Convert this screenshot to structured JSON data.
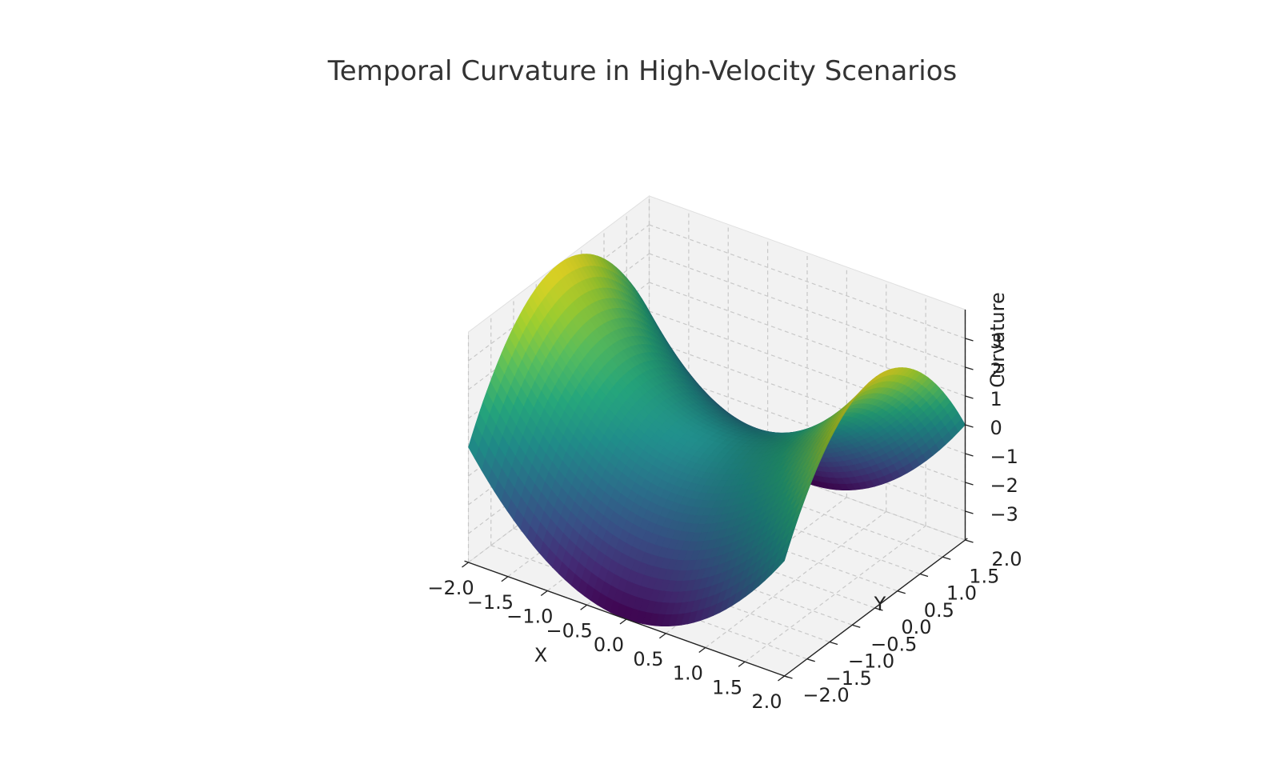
{
  "chart_data": {
    "type": "surface3d",
    "title": "Temporal Curvature in High-Velocity Scenarios",
    "xlabel": "X",
    "ylabel": "Y",
    "zlabel": "Curvature",
    "function": "z = x^2 - y^2",
    "xlim": [
      -2,
      2
    ],
    "ylim": [
      -2,
      2
    ],
    "zlim": [
      -4,
      4
    ],
    "grid_points": 50,
    "xticks": [
      -2.0,
      -1.5,
      -1.0,
      -0.5,
      0.0,
      0.5,
      1.0,
      1.5,
      2.0
    ],
    "xtick_labels": [
      "−2.0",
      "−1.5",
      "−1.0",
      "−0.5",
      "0.0",
      "0.5",
      "1.0",
      "1.5",
      "2.0"
    ],
    "yticks": [
      -2.0,
      -1.5,
      -1.0,
      -0.5,
      0.0,
      0.5,
      1.0,
      1.5,
      2.0
    ],
    "ytick_labels": [
      "−2.0",
      "−1.5",
      "−1.0",
      "−0.5",
      "0.0",
      "0.5",
      "1.0",
      "1.5",
      "2.0"
    ],
    "zticks": [
      -3,
      -2,
      -1,
      0,
      1,
      2,
      3
    ],
    "ztick_labels": [
      "−3",
      "−2",
      "−1",
      "0",
      "1",
      "2",
      "3"
    ],
    "colormap": "viridis",
    "grid": true,
    "pane_color": "#f2f2f2",
    "grid_color": "#c8c8c8"
  }
}
